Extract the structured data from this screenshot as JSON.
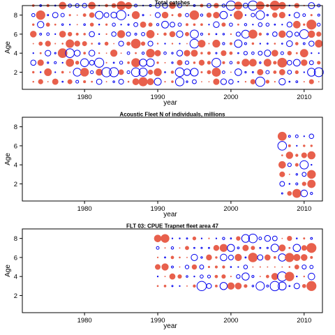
{
  "colors": {
    "positive": "#e8604c",
    "negative": "#0000ee",
    "axis": "#000000",
    "background": "#ffffff"
  },
  "chart_data": [
    {
      "type": "scatter",
      "encoding": "bubble (residual sign: filled red = positive, open blue = negative; size = magnitude)",
      "title": "Total catches",
      "xlabel": "year",
      "ylabel": "Age",
      "xlim": [
        1971.5,
        2012.5
      ],
      "ylim": [
        0.2,
        9.0
      ],
      "xticks": [
        "1980",
        "1990",
        "2000",
        "2010"
      ],
      "yticks": [
        "2",
        "4",
        "6",
        "8"
      ],
      "years": [
        1973,
        2012
      ],
      "ages": [
        1,
        9
      ],
      "seed": 11
    },
    {
      "type": "scatter",
      "encoding": "bubble (residual sign: filled red = positive, open blue = negative; size = magnitude)",
      "title": "Acoustic Fleet  N of individuals, millions",
      "xlabel": "year",
      "ylabel": "Age",
      "xlim": [
        1971.5,
        2012.5
      ],
      "ylim": [
        0.2,
        9.0
      ],
      "xticks": [
        "1980",
        "1990",
        "2000",
        "2010"
      ],
      "yticks": [
        "2",
        "4",
        "6",
        "8"
      ],
      "years": [
        2007,
        2011
      ],
      "ages": [
        1,
        7
      ],
      "seed": 29
    },
    {
      "type": "scatter",
      "encoding": "bubble (residual sign: filled red = positive, open blue = negative; size = magnitude)",
      "title": "FLT 03: CPUE Trapnet fleet area 47",
      "xlabel": "year",
      "ylabel": "Age",
      "xlim": [
        1971.5,
        2012.5
      ],
      "ylim": [
        0.2,
        9.0
      ],
      "xticks": [
        "1980",
        "1990",
        "2000",
        "2010"
      ],
      "yticks": [
        "2",
        "4",
        "6",
        "8"
      ],
      "years": [
        1990,
        2011
      ],
      "ages": [
        3,
        8
      ],
      "seed": 53
    }
  ]
}
